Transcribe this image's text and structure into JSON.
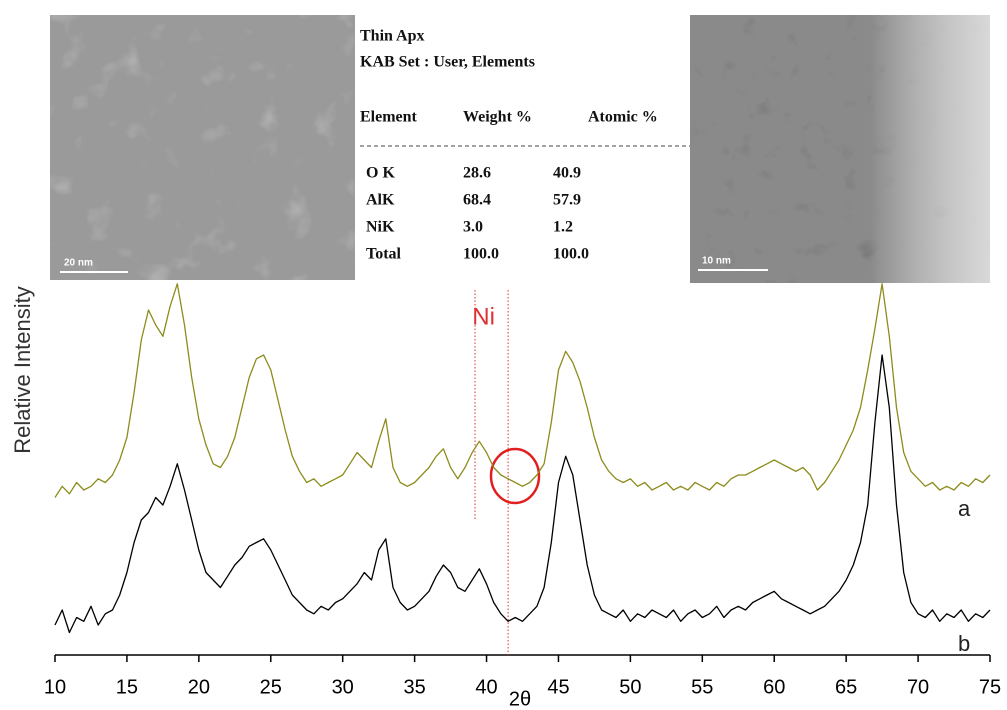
{
  "chart_data": {
    "type": "line",
    "xlabel": "2θ",
    "ylabel": "Relative Intensity",
    "xlim": [
      10,
      75
    ],
    "xticks": [
      10,
      15,
      20,
      25,
      30,
      35,
      40,
      45,
      50,
      55,
      60,
      65,
      70,
      75
    ],
    "ylim": [
      0,
      100
    ],
    "reference_lines": [
      39.2,
      41.5
    ],
    "reference_color": "#e03030",
    "reference_label": "Ni",
    "x": [
      10,
      10.5,
      11,
      11.5,
      12,
      12.5,
      13,
      13.5,
      14,
      14.5,
      15,
      15.5,
      16,
      16.5,
      17,
      17.5,
      18,
      18.5,
      19,
      19.5,
      20,
      20.5,
      21,
      21.5,
      22,
      22.5,
      23,
      23.5,
      24,
      24.5,
      25,
      25.5,
      26,
      26.5,
      27,
      27.5,
      28,
      28.5,
      29,
      29.5,
      30,
      30.5,
      31,
      31.5,
      32,
      32.5,
      33,
      33.5,
      34,
      34.5,
      35,
      35.5,
      36,
      36.5,
      37,
      37.5,
      38,
      38.5,
      39,
      39.5,
      40,
      40.5,
      41,
      41.5,
      42,
      42.5,
      43,
      43.5,
      44,
      44.5,
      45,
      45.5,
      46,
      46.5,
      47,
      47.5,
      48,
      48.5,
      49,
      49.5,
      50,
      50.5,
      51,
      51.5,
      52,
      52.5,
      53,
      53.5,
      54,
      54.5,
      55,
      55.5,
      56,
      56.5,
      57,
      57.5,
      58,
      58.5,
      59,
      59.5,
      60,
      60.5,
      61,
      61.5,
      62,
      62.5,
      63,
      63.5,
      64,
      64.5,
      65,
      65.5,
      66,
      66.5,
      67,
      67.5,
      68,
      68.5,
      69,
      69.5,
      70,
      70.5,
      71,
      71.5,
      72,
      72.5,
      73,
      73.5,
      74,
      74.5,
      75
    ],
    "series": [
      {
        "name": "a",
        "color": "#8c8c1c",
        "values": [
          42,
          45,
          43,
          46,
          44,
          45,
          47,
          46,
          48,
          52,
          58,
          70,
          84,
          92,
          88,
          85,
          93,
          99,
          88,
          74,
          63,
          56,
          51,
          50,
          53,
          58,
          66,
          74,
          79,
          80,
          76,
          68,
          60,
          53,
          49,
          46,
          47,
          45,
          46,
          47,
          48,
          51,
          54,
          52,
          50,
          57,
          63,
          50,
          46,
          45,
          46,
          48,
          50,
          53,
          55,
          50,
          47,
          50,
          54,
          57,
          54,
          50,
          48,
          47,
          46,
          45,
          46,
          48,
          51,
          62,
          76,
          81,
          78,
          73,
          66,
          58,
          52,
          49,
          47,
          46,
          47,
          45,
          46,
          44,
          45,
          46,
          44,
          45,
          44,
          46,
          45,
          44,
          46,
          45,
          47,
          48,
          48,
          49,
          50,
          51,
          52,
          51,
          50,
          49,
          50,
          48,
          44,
          46,
          49,
          52,
          56,
          60,
          66,
          76,
          87,
          99,
          85,
          66,
          54,
          49,
          47,
          45,
          46,
          44,
          45,
          44,
          46,
          45,
          47,
          46,
          48
        ]
      },
      {
        "name": "b",
        "color": "#000000",
        "values": [
          8,
          12,
          6,
          10,
          9,
          13,
          8,
          11,
          12,
          16,
          22,
          30,
          36,
          38,
          42,
          40,
          45,
          51,
          44,
          36,
          28,
          22,
          20,
          18,
          21,
          24,
          26,
          29,
          30,
          31,
          28,
          24,
          20,
          16,
          14,
          12,
          11,
          13,
          12,
          14,
          15,
          17,
          19,
          22,
          20,
          28,
          31,
          18,
          14,
          12,
          13,
          15,
          17,
          21,
          24,
          22,
          18,
          17,
          20,
          23,
          19,
          14,
          11,
          9,
          10,
          9,
          11,
          13,
          18,
          30,
          46,
          53,
          48,
          36,
          24,
          16,
          12,
          11,
          10,
          12,
          9,
          11,
          10,
          12,
          11,
          10,
          12,
          9,
          11,
          12,
          10,
          11,
          13,
          10,
          12,
          13,
          12,
          14,
          15,
          16,
          17,
          15,
          14,
          13,
          12,
          11,
          12,
          13,
          15,
          17,
          20,
          24,
          30,
          40,
          62,
          80,
          66,
          40,
          22,
          14,
          11,
          10,
          12,
          9,
          11,
          10,
          12,
          9,
          11,
          10,
          12
        ]
      }
    ]
  },
  "eds_table": {
    "title": "Thin Apx",
    "subtitle": "KAB Set : User, Elements",
    "header": [
      "Element",
      "Weight %",
      "Atomic %"
    ],
    "rows": [
      [
        "O K",
        "28.6",
        "40.9"
      ],
      [
        "AlK",
        "68.4",
        "57.9"
      ],
      [
        "NiK",
        "3.0",
        "1.2"
      ],
      [
        "Total",
        "100.0",
        "100.0"
      ]
    ]
  },
  "images": [
    {
      "scale_label": "20 nm"
    },
    {
      "scale_label": "10 nm"
    }
  ]
}
